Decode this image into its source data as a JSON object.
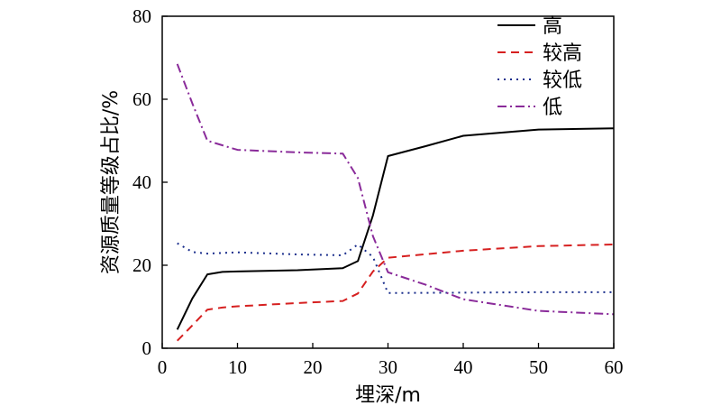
{
  "chart_data": {
    "type": "line",
    "xlabel": "埋深/m",
    "ylabel": "资源质量等级占比/%",
    "xlim": [
      0,
      60
    ],
    "ylim": [
      0,
      80
    ],
    "xticks": [
      0,
      10,
      20,
      30,
      40,
      50,
      60
    ],
    "yticks": [
      0,
      20,
      40,
      60,
      80
    ],
    "grid": false,
    "legend_position": "top-right",
    "series": [
      {
        "name": "高",
        "color": "#000000",
        "dash": "solid",
        "points": [
          [
            2,
            4.5
          ],
          [
            4,
            12
          ],
          [
            6,
            17.8
          ],
          [
            8,
            18.4
          ],
          [
            10,
            18.5
          ],
          [
            18,
            18.8
          ],
          [
            24,
            19.3
          ],
          [
            26,
            21
          ],
          [
            28,
            32
          ],
          [
            30,
            46.3
          ],
          [
            35,
            48.7
          ],
          [
            40,
            51.2
          ],
          [
            50,
            52.7
          ],
          [
            60,
            53
          ]
        ]
      },
      {
        "name": "较高",
        "color": "#d62020",
        "dash": "dashed",
        "points": [
          [
            2,
            1.8
          ],
          [
            4,
            5.5
          ],
          [
            6,
            9.3
          ],
          [
            8,
            9.8
          ],
          [
            10,
            10.1
          ],
          [
            18,
            10.9
          ],
          [
            24,
            11.4
          ],
          [
            26,
            13.2
          ],
          [
            28,
            18.5
          ],
          [
            30,
            21.8
          ],
          [
            40,
            23.5
          ],
          [
            50,
            24.6
          ],
          [
            60,
            25
          ]
        ]
      },
      {
        "name": "较低",
        "color": "#1a2e8c",
        "dash": "dotted",
        "points": [
          [
            2,
            25.3
          ],
          [
            4,
            23.2
          ],
          [
            6,
            22.8
          ],
          [
            10,
            23.1
          ],
          [
            18,
            22.6
          ],
          [
            24,
            22.4
          ],
          [
            26,
            25
          ],
          [
            28,
            22
          ],
          [
            30,
            13.3
          ],
          [
            40,
            13.4
          ],
          [
            50,
            13.5
          ],
          [
            60,
            13.5
          ]
        ]
      },
      {
        "name": "低",
        "color": "#8a2b9a",
        "dash": "dashdot",
        "points": [
          [
            2,
            68.5
          ],
          [
            4,
            59
          ],
          [
            6,
            50
          ],
          [
            10,
            47.8
          ],
          [
            18,
            47.2
          ],
          [
            24,
            46.9
          ],
          [
            26,
            41
          ],
          [
            28,
            27
          ],
          [
            30,
            18.3
          ],
          [
            35,
            15.3
          ],
          [
            40,
            11.8
          ],
          [
            50,
            9
          ],
          [
            60,
            8.2
          ]
        ]
      }
    ]
  }
}
